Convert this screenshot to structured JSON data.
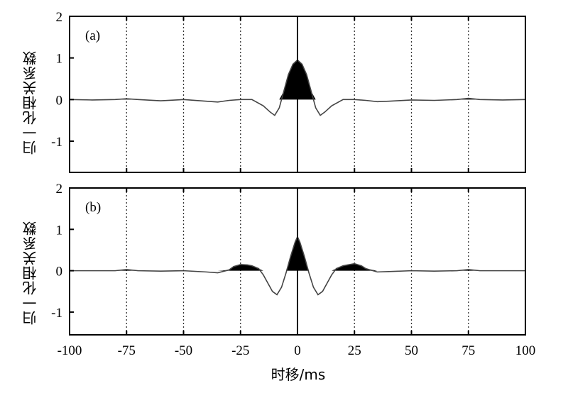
{
  "x_axis_label": "时移/ms",
  "chart_data": [
    {
      "type": "line",
      "panel_label": "(a)",
      "ylabel": "归一化相关系数",
      "xlabel": "",
      "xlim": [
        -100,
        100
      ],
      "ylim": [
        -1.75,
        2
      ],
      "x_ticks": [
        -100,
        -75,
        -50,
        -25,
        0,
        25,
        50,
        75,
        100
      ],
      "y_ticks": [
        2,
        1,
        0,
        -1
      ],
      "grid": "vertical-dotted",
      "fill_positive": true,
      "x": [
        -100,
        -90,
        -80,
        -75,
        -70,
        -60,
        -50,
        -40,
        -35,
        -30,
        -25,
        -20,
        -15,
        -12,
        -10,
        -8,
        -6,
        -4,
        -2,
        0,
        2,
        4,
        6,
        8,
        10,
        12,
        15,
        20,
        25,
        30,
        35,
        40,
        50,
        60,
        70,
        75,
        80,
        90,
        100
      ],
      "y": [
        0.0,
        -0.01,
        0.0,
        0.02,
        0.0,
        -0.03,
        0.0,
        -0.04,
        -0.06,
        -0.02,
        0.0,
        0.0,
        -0.15,
        -0.3,
        -0.38,
        -0.2,
        0.2,
        0.6,
        0.85,
        0.95,
        0.85,
        0.6,
        0.2,
        -0.2,
        -0.38,
        -0.3,
        -0.15,
        0.0,
        0.0,
        -0.02,
        -0.05,
        -0.04,
        -0.01,
        -0.02,
        0.0,
        0.03,
        0.0,
        -0.01,
        0.0
      ]
    },
    {
      "type": "line",
      "panel_label": "(b)",
      "ylabel": "归一化相关系数",
      "xlabel": "",
      "xlim": [
        -100,
        100
      ],
      "ylim": [
        -1.55,
        2
      ],
      "x_ticks": [
        -100,
        -75,
        -50,
        -25,
        0,
        25,
        50,
        75,
        100
      ],
      "y_ticks": [
        2,
        1,
        0,
        -1
      ],
      "grid": "vertical-dotted",
      "fill_positive": true,
      "x": [
        -100,
        -90,
        -80,
        -75,
        -70,
        -60,
        -50,
        -40,
        -35,
        -30,
        -28,
        -25,
        -22,
        -20,
        -17,
        -15,
        -13,
        -11,
        -9,
        -7,
        -5,
        -3,
        -1,
        0,
        1,
        3,
        5,
        7,
        9,
        11,
        13,
        15,
        17,
        20,
        22,
        25,
        28,
        30,
        35,
        40,
        50,
        60,
        70,
        75,
        80,
        90,
        100
      ],
      "y": [
        0.0,
        0.0,
        0.0,
        0.03,
        0.0,
        -0.01,
        0.0,
        -0.03,
        -0.05,
        0.02,
        0.1,
        0.15,
        0.14,
        0.12,
        0.05,
        -0.1,
        -0.3,
        -0.5,
        -0.58,
        -0.4,
        -0.05,
        0.35,
        0.7,
        0.82,
        0.7,
        0.35,
        -0.05,
        -0.4,
        -0.58,
        -0.5,
        -0.3,
        -0.1,
        0.05,
        0.12,
        0.14,
        0.17,
        0.12,
        0.05,
        -0.03,
        -0.02,
        0.0,
        -0.01,
        0.0,
        0.03,
        0.0,
        0.0,
        0.0
      ]
    }
  ]
}
